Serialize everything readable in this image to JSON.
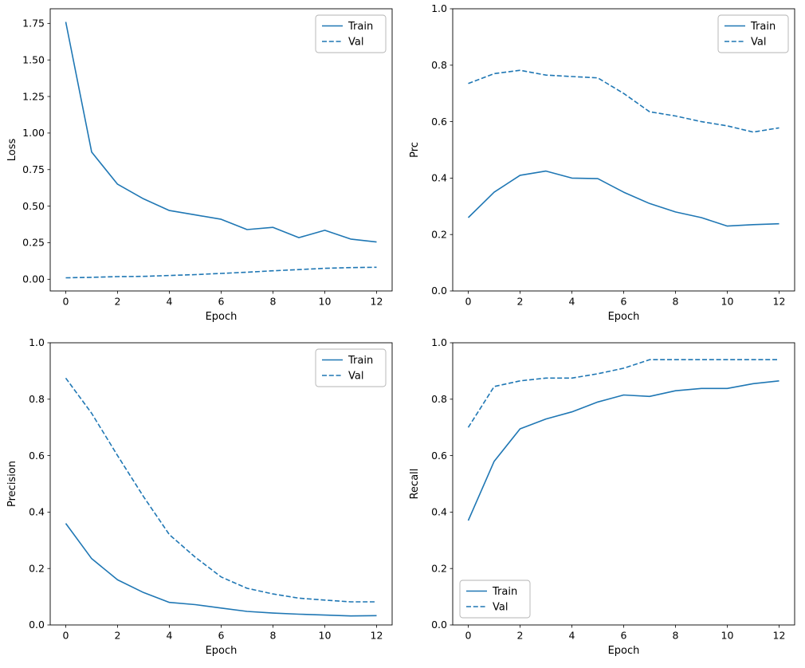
{
  "figure": {
    "background": "#ffffff",
    "line_color": "#1f77b4",
    "legend_labels": [
      "Train",
      "Val"
    ]
  },
  "chart_data": [
    {
      "type": "line",
      "title": "",
      "xlabel": "Epoch",
      "ylabel": "Loss",
      "x": [
        0,
        1,
        2,
        3,
        4,
        5,
        6,
        7,
        8,
        9,
        10,
        11,
        12
      ],
      "xlim": [
        -0.6,
        12.6
      ],
      "ylim": [
        -0.08,
        1.85
      ],
      "xticks": [
        0,
        2,
        4,
        6,
        8,
        10,
        12
      ],
      "yticks": [
        0.0,
        0.25,
        0.5,
        0.75,
        1.0,
        1.25,
        1.5,
        1.75
      ],
      "ytick_decimals": 2,
      "grid": false,
      "legend_loc": "upper-right",
      "series": [
        {
          "name": "Train",
          "style": "solid",
          "values": [
            1.76,
            0.87,
            0.65,
            0.55,
            0.47,
            0.44,
            0.41,
            0.34,
            0.355,
            0.285,
            0.335,
            0.275,
            0.255
          ]
        },
        {
          "name": "Val",
          "style": "dashed",
          "values": [
            0.01,
            0.013,
            0.018,
            0.02,
            0.026,
            0.032,
            0.04,
            0.048,
            0.058,
            0.066,
            0.075,
            0.08,
            0.082
          ]
        }
      ]
    },
    {
      "type": "line",
      "title": "",
      "xlabel": "Epoch",
      "ylabel": "Prc",
      "x": [
        0,
        1,
        2,
        3,
        4,
        5,
        6,
        7,
        8,
        9,
        10,
        11,
        12
      ],
      "xlim": [
        -0.6,
        12.6
      ],
      "ylim": [
        0,
        1
      ],
      "xticks": [
        0,
        2,
        4,
        6,
        8,
        10,
        12
      ],
      "yticks": [
        0.0,
        0.2,
        0.4,
        0.6,
        0.8,
        1.0
      ],
      "ytick_decimals": 1,
      "grid": false,
      "legend_loc": "upper-right",
      "series": [
        {
          "name": "Train",
          "style": "solid",
          "values": [
            0.26,
            0.35,
            0.41,
            0.425,
            0.4,
            0.398,
            0.35,
            0.31,
            0.28,
            0.26,
            0.23,
            0.235,
            0.238
          ]
        },
        {
          "name": "Val",
          "style": "dashed",
          "values": [
            0.735,
            0.77,
            0.782,
            0.765,
            0.76,
            0.755,
            0.7,
            0.635,
            0.62,
            0.6,
            0.585,
            0.563,
            0.578
          ]
        }
      ]
    },
    {
      "type": "line",
      "title": "",
      "xlabel": "Epoch",
      "ylabel": "Precision",
      "x": [
        0,
        1,
        2,
        3,
        4,
        5,
        6,
        7,
        8,
        9,
        10,
        11,
        12
      ],
      "xlim": [
        -0.6,
        12.6
      ],
      "ylim": [
        0,
        1
      ],
      "xticks": [
        0,
        2,
        4,
        6,
        8,
        10,
        12
      ],
      "yticks": [
        0.0,
        0.2,
        0.4,
        0.6,
        0.8,
        1.0
      ],
      "ytick_decimals": 1,
      "grid": false,
      "legend_loc": "upper-right",
      "series": [
        {
          "name": "Train",
          "style": "solid",
          "values": [
            0.36,
            0.235,
            0.16,
            0.115,
            0.08,
            0.072,
            0.06,
            0.048,
            0.042,
            0.038,
            0.035,
            0.032,
            0.033
          ]
        },
        {
          "name": "Val",
          "style": "dashed",
          "values": [
            0.875,
            0.75,
            0.6,
            0.455,
            0.32,
            0.24,
            0.17,
            0.13,
            0.11,
            0.095,
            0.088,
            0.082,
            0.082
          ]
        }
      ]
    },
    {
      "type": "line",
      "title": "",
      "xlabel": "Epoch",
      "ylabel": "Recall",
      "x": [
        0,
        1,
        2,
        3,
        4,
        5,
        6,
        7,
        8,
        9,
        10,
        11,
        12
      ],
      "xlim": [
        -0.6,
        12.6
      ],
      "ylim": [
        0,
        1
      ],
      "xticks": [
        0,
        2,
        4,
        6,
        8,
        10,
        12
      ],
      "yticks": [
        0.0,
        0.2,
        0.4,
        0.6,
        0.8,
        1.0
      ],
      "ytick_decimals": 1,
      "grid": false,
      "legend_loc": "lower-left",
      "series": [
        {
          "name": "Train",
          "style": "solid",
          "values": [
            0.37,
            0.58,
            0.695,
            0.73,
            0.755,
            0.79,
            0.815,
            0.81,
            0.83,
            0.838,
            0.838,
            0.855,
            0.865
          ]
        },
        {
          "name": "Val",
          "style": "dashed",
          "values": [
            0.7,
            0.845,
            0.865,
            0.875,
            0.875,
            0.89,
            0.91,
            0.94,
            0.94,
            0.94,
            0.94,
            0.94,
            0.94
          ]
        }
      ]
    }
  ]
}
